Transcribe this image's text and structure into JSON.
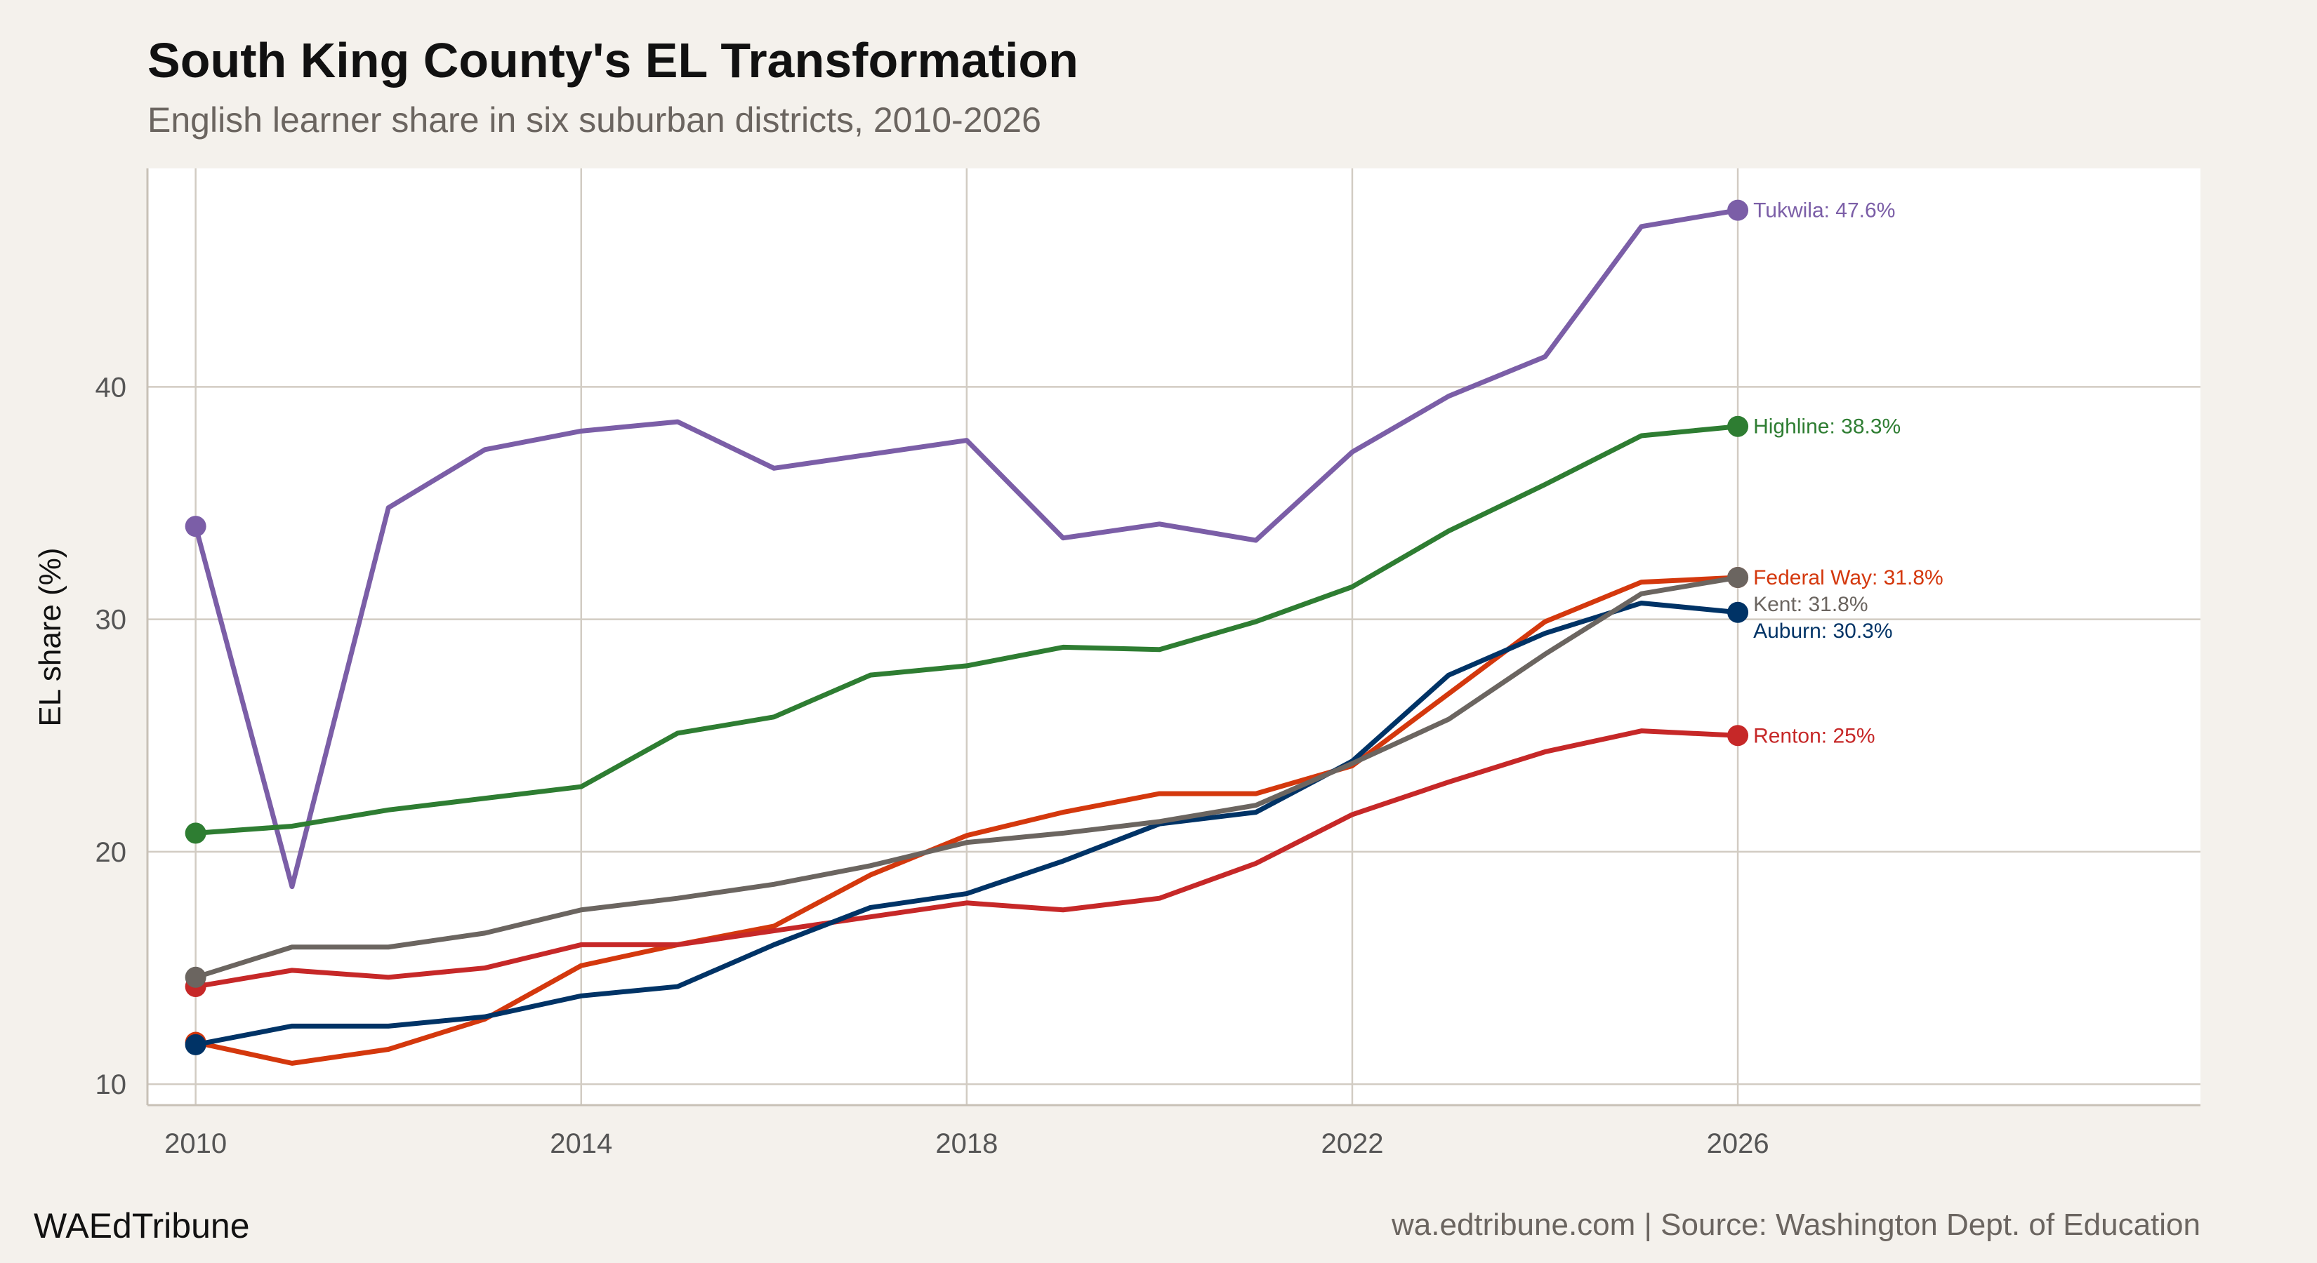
{
  "chart_data": {
    "type": "line",
    "title": "South King County's EL Transformation",
    "subtitle": "English learner share in six suburban districts, 2010-2026",
    "xlabel": "",
    "ylabel": "EL share (%)",
    "xlim": [
      2009.5,
      2030.8
    ],
    "ylim": [
      9.1,
      49.4
    ],
    "xticks": [
      2010,
      2014,
      2018,
      2022,
      2026
    ],
    "yticks": [
      10,
      20,
      30,
      40
    ],
    "grid": true,
    "legend": "none (direct end labels)",
    "x": [
      2010,
      2011,
      2012,
      2013,
      2014,
      2015,
      2016,
      2017,
      2018,
      2019,
      2020,
      2021,
      2022,
      2023,
      2024,
      2025,
      2026
    ],
    "series": [
      {
        "name": "Tukwila",
        "color": "#7b5ea7",
        "label": "Tukwila: 47.6%",
        "values": [
          34.0,
          18.5,
          34.8,
          37.3,
          38.1,
          38.5,
          36.5,
          37.1,
          37.7,
          33.5,
          34.1,
          33.4,
          37.2,
          39.6,
          41.3,
          46.9,
          47.6
        ]
      },
      {
        "name": "Highline",
        "color": "#2e7d32",
        "label": "Highline: 38.3%",
        "values": [
          20.8,
          21.1,
          21.8,
          22.3,
          22.8,
          25.1,
          25.8,
          27.6,
          28.0,
          28.8,
          28.7,
          29.9,
          31.4,
          33.8,
          35.8,
          37.9,
          38.3
        ]
      },
      {
        "name": "Federal Way",
        "color": "#d4380d",
        "label": "Federal Way: 31.8%",
        "values": [
          11.8,
          10.9,
          11.5,
          12.8,
          15.1,
          16.0,
          16.8,
          19.0,
          20.7,
          21.7,
          22.5,
          22.5,
          23.7,
          26.8,
          29.9,
          31.6,
          31.8
        ]
      },
      {
        "name": "Renton",
        "color": "#c62828",
        "label": "Renton: 25%",
        "values": [
          14.2,
          14.9,
          14.6,
          15.0,
          16.0,
          16.0,
          16.6,
          17.2,
          17.8,
          17.5,
          18.0,
          19.5,
          21.6,
          23.0,
          24.3,
          25.2,
          25.0
        ]
      },
      {
        "name": "Auburn",
        "color": "#003366",
        "label": "Auburn: 30.3%",
        "values": [
          11.7,
          12.5,
          12.5,
          12.9,
          13.8,
          14.2,
          16.0,
          17.6,
          18.2,
          19.6,
          21.2,
          21.7,
          23.9,
          27.6,
          29.4,
          30.7,
          30.3
        ]
      },
      {
        "name": "Kent",
        "color": "#6b6560",
        "label": "Kent: 31.8%",
        "values": [
          14.6,
          15.9,
          15.9,
          16.5,
          17.5,
          18.0,
          18.6,
          19.4,
          20.4,
          20.8,
          21.3,
          22.0,
          23.8,
          25.7,
          28.5,
          31.1,
          31.8
        ]
      }
    ]
  },
  "footer": {
    "brand": "WAEdTribune",
    "source": "wa.edtribune.com | Source: Washington Dept. of Education"
  },
  "colors": {
    "background": "#f4f1ec",
    "panel": "#ffffff",
    "grid": "#d2ccc3"
  }
}
